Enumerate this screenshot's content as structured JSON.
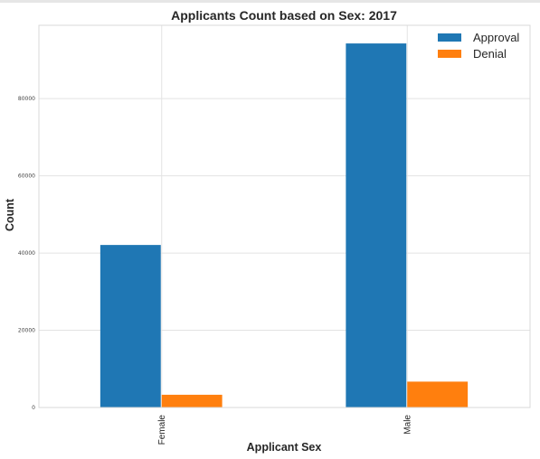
{
  "chart_data": {
    "type": "bar",
    "title": "Applicants Count based on Sex: 2017",
    "xlabel": "Applicant Sex",
    "ylabel": "Count",
    "categories": [
      "Female",
      "Male"
    ],
    "series": [
      {
        "name": "Approval",
        "values": [
          42100,
          94300
        ],
        "color": "#1f77b4"
      },
      {
        "name": "Denial",
        "values": [
          3300,
          6700
        ],
        "color": "#ff7f0e"
      }
    ],
    "ylim": [
      0,
      99000
    ],
    "yticks": [
      0,
      20000,
      40000,
      60000,
      80000
    ],
    "grid": true,
    "legend": "top-right"
  }
}
